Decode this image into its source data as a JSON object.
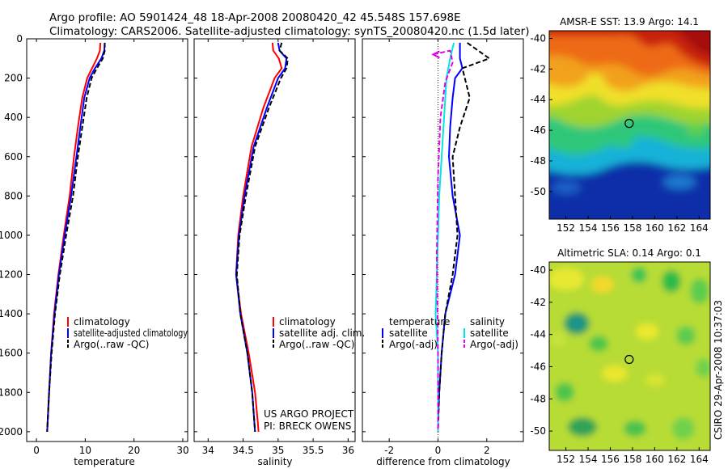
{
  "header": {
    "line1": "Argo profile: AO 5901424_48 18-Apr-2008 20080420_42 45.548S 157.698E",
    "line2": "Climatology: CARS2006. Satellite-adjusted climatology: synTS_20080420.nc (1.5d later)"
  },
  "credit": {
    "project": "US ARGO PROJECT",
    "pi": "PI: BRECK OWENS",
    "side_stamp": "CSIRO 29-Apr-2008 10:37:03"
  },
  "colors": {
    "climatology": "#ff0000",
    "satellite": "#0000ff",
    "argo": "#000000",
    "salinity_satellite": "#00e5e5",
    "salinity_argo": "#e600e6"
  },
  "chart_data": [
    {
      "type": "line",
      "id": "temperature",
      "xlabel": "temperature",
      "ylabel": "",
      "xlim": [
        -2,
        31
      ],
      "ylim": [
        2050,
        0
      ],
      "xticks": [
        "0",
        "10",
        "20",
        "30"
      ],
      "yticks": [
        "0",
        "200",
        "400",
        "600",
        "800",
        "1000",
        "1200",
        "1400",
        "1600",
        "1800",
        "2000"
      ],
      "legend": [
        "climatology",
        "satellite-adjusted climatology",
        "Argo(..raw -QC)"
      ],
      "series": [
        {
          "name": "climatology",
          "color": "#ff0000",
          "dash": false,
          "x": [
            13.1,
            13.0,
            12.4,
            11.4,
            10.4,
            9.4,
            8.5,
            7.7,
            6.8,
            5.6,
            4.5,
            3.6,
            3.0,
            2.6,
            2.3,
            2.2
          ],
          "y": [
            20,
            60,
            100,
            150,
            200,
            300,
            450,
            600,
            800,
            1000,
            1200,
            1400,
            1600,
            1800,
            1950,
            2000
          ]
        },
        {
          "name": "satellite-adjusted climatology",
          "color": "#0000ff",
          "dash": false,
          "x": [
            14.0,
            13.9,
            13.3,
            12.0,
            10.9,
            9.8,
            9.0,
            8.2,
            7.1,
            5.8,
            4.6,
            3.7,
            3.0,
            2.6,
            2.3,
            2.2
          ],
          "y": [
            20,
            60,
            100,
            150,
            200,
            300,
            450,
            600,
            800,
            1000,
            1200,
            1400,
            1600,
            1800,
            1950,
            2000
          ]
        },
        {
          "name": "Argo(..raw -QC)",
          "color": "#000000",
          "dash": true,
          "x": [
            14.0,
            14.0,
            13.6,
            12.4,
            11.3,
            10.3,
            9.4,
            8.5,
            7.5,
            6.1,
            4.8,
            3.8,
            3.1,
            2.6,
            2.3,
            2.2
          ],
          "y": [
            20,
            60,
            100,
            150,
            200,
            300,
            450,
            600,
            800,
            1000,
            1200,
            1400,
            1600,
            1800,
            1950,
            2000
          ]
        }
      ]
    },
    {
      "type": "line",
      "id": "salinity",
      "xlabel": "salinity",
      "ylabel": "",
      "xlim": [
        33.8,
        36.1
      ],
      "ylim": [
        2050,
        0
      ],
      "xticks": [
        "34",
        "34.5",
        "35",
        "35.5",
        "36"
      ],
      "legend": [
        "climatology",
        "satellite adj. clim.",
        "Argo(..raw -QC)"
      ],
      "series": [
        {
          "name": "climatology",
          "color": "#ff0000",
          "dash": false,
          "x": [
            34.92,
            34.93,
            35.01,
            35.05,
            34.95,
            34.79,
            34.62,
            34.5,
            34.43,
            34.4,
            34.47,
            34.58,
            34.67,
            34.71,
            34.72
          ],
          "y": [
            20,
            60,
            100,
            150,
            200,
            350,
            550,
            800,
            1000,
            1200,
            1400,
            1600,
            1800,
            1950,
            2000
          ]
        },
        {
          "name": "satellite adj. clim.",
          "color": "#0000ff",
          "dash": false,
          "x": [
            35.0,
            35.02,
            35.12,
            35.1,
            35.0,
            34.84,
            34.65,
            34.52,
            34.44,
            34.4,
            34.46,
            34.56,
            34.63,
            34.66,
            34.67
          ],
          "y": [
            20,
            60,
            100,
            150,
            200,
            350,
            550,
            800,
            1000,
            1200,
            1400,
            1600,
            1800,
            1950,
            2000
          ]
        },
        {
          "name": "Argo(..raw -QC)",
          "color": "#000000",
          "dash": true,
          "x": [
            35.05,
            35.02,
            35.14,
            35.12,
            35.04,
            34.87,
            34.67,
            34.54,
            34.45,
            34.41,
            34.46,
            34.56,
            34.63,
            34.66,
            34.67
          ],
          "y": [
            20,
            60,
            100,
            150,
            200,
            350,
            550,
            800,
            1000,
            1200,
            1400,
            1600,
            1800,
            1950,
            2000
          ]
        }
      ]
    },
    {
      "type": "line",
      "id": "difference",
      "xlabel": "difference from climatology",
      "ylabel": "",
      "xlim": [
        -3.1,
        3.5
      ],
      "ylim": [
        2050,
        0
      ],
      "xticks": [
        "-2",
        "0",
        "2"
      ],
      "legend_headers": [
        "temperature",
        "salinity"
      ],
      "legend": [
        "satellite",
        "Argo(-adj)",
        "satellite",
        "Argo(-adj)"
      ],
      "series": [
        {
          "name": "satellite",
          "group": "temperature",
          "color": "#0000ff",
          "dash": false,
          "x": [
            0.9,
            0.9,
            1.0,
            0.7,
            0.6,
            0.5,
            0.45,
            0.6,
            0.9,
            0.7,
            0.3,
            0.15,
            0.05,
            0.0,
            0.0
          ],
          "y": [
            20,
            100,
            150,
            200,
            300,
            450,
            600,
            800,
            1000,
            1200,
            1400,
            1600,
            1800,
            1950,
            2000
          ]
        },
        {
          "name": "Argo(-adj)",
          "group": "temperature",
          "color": "#000000",
          "dash": true,
          "x": [
            1.2,
            2.1,
            1.0,
            1.3,
            0.9,
            0.6,
            0.7,
            0.8,
            0.6,
            0.3,
            0.15,
            0.05,
            0.0
          ],
          "y": [
            20,
            100,
            150,
            300,
            450,
            600,
            800,
            1000,
            1200,
            1400,
            1600,
            1800,
            2000
          ]
        },
        {
          "name": "satellite",
          "group": "salinity",
          "color": "#00e5e5",
          "dash": false,
          "x": [
            0.65,
            0.5,
            0.35,
            0.25,
            0.15,
            0.05,
            0.0,
            -0.05,
            -0.1,
            0.0,
            0.0,
            0.0
          ],
          "y": [
            20,
            100,
            200,
            400,
            600,
            800,
            1000,
            1200,
            1400,
            1600,
            1800,
            2000
          ]
        },
        {
          "name": "Argo(-adj)",
          "group": "salinity",
          "color": "#e600e6",
          "dash": true,
          "x": [
            -0.2,
            0.5,
            0.6,
            0.3,
            0.1,
            0.0,
            -0.05,
            0.0,
            0.0
          ],
          "y": [
            80,
            60,
            120,
            220,
            400,
            700,
            1100,
            1600,
            2000
          ]
        }
      ]
    },
    {
      "type": "heatmap",
      "id": "sst",
      "title": "AMSR-E SST: 13.9 Argo: 14.1",
      "xlim": [
        150.5,
        165
      ],
      "ylim": [
        -51.8,
        -39.5
      ],
      "xticks": [
        "152",
        "154",
        "156",
        "158",
        "160",
        "162",
        "164"
      ],
      "yticks": [
        "-40",
        "-42",
        "-44",
        "-46",
        "-48",
        "-50"
      ],
      "marker": {
        "lon": 157.7,
        "lat": -45.55
      }
    },
    {
      "type": "heatmap",
      "id": "sla",
      "title": "Altimetric SLA: 0.14 Argo: 0.1",
      "xlim": [
        150.5,
        165
      ],
      "ylim": [
        -51.2,
        -39.5
      ],
      "xticks": [
        "152",
        "154",
        "156",
        "158",
        "160",
        "162",
        "164"
      ],
      "yticks": [
        "-40",
        "-42",
        "-44",
        "-46",
        "-48",
        "-50"
      ],
      "marker": {
        "lon": 157.7,
        "lat": -45.55
      }
    }
  ]
}
